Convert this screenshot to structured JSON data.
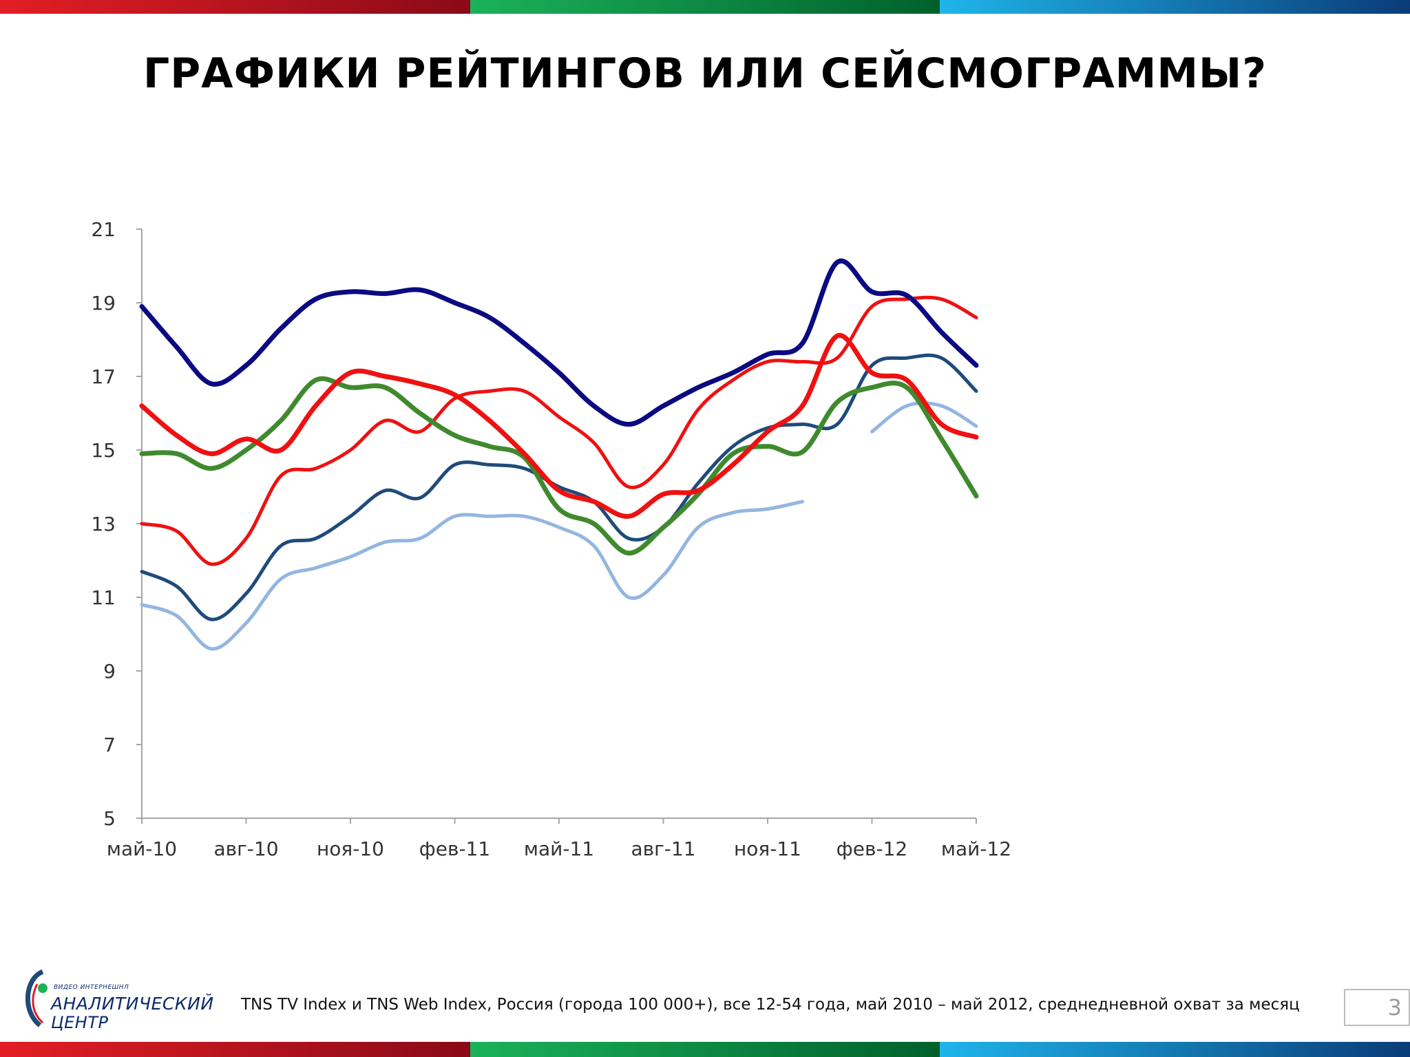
{
  "title": "ГРАФИКИ РЕЙТИНГОВ ИЛИ СЕЙСМОГРАММЫ?",
  "footer": {
    "source": "TNS TV Index и TNS Web Index, Россия (города 100 000+), все 12-54 года, май 2010 – май 2012, среднедневной охват за месяц",
    "page_number": "3",
    "logo_small": "ВИДЕО ИНТЕРНЕШНЛ",
    "logo_line1": "АНАЛИТИЧЕСКИЙ",
    "logo_line2": "ЦЕНТР"
  },
  "colors": {
    "navy": "#0a0a82",
    "red": "#ee1111",
    "green": "#3f8a2e",
    "steel": "#1f4b7a",
    "lightblue": "#93b6e0",
    "band_red": "#e31e24",
    "band_green": "#1bb25a",
    "band_blue": "#1fb5ea"
  },
  "chart_data": {
    "type": "line",
    "x_tick_labels": [
      "май-10",
      "авг-10",
      "ноя-10",
      "фев-11",
      "май-11",
      "авг-11",
      "ноя-11",
      "фев-12",
      "май-12"
    ],
    "ylim": [
      5,
      21
    ],
    "y_ticks": [
      "5",
      "7",
      "9",
      "11",
      "13",
      "15",
      "17",
      "19",
      "21"
    ],
    "legend": "none",
    "series": [
      {
        "color": "#0a0a82",
        "width": 7,
        "values": [
          18.9,
          17.8,
          16.8,
          17.3,
          18.3,
          19.1,
          19.3,
          19.25,
          19.35,
          19.0,
          18.6,
          17.9,
          17.1,
          16.2,
          15.7,
          16.2,
          16.7,
          17.1,
          17.6,
          17.9,
          20.1,
          19.3,
          19.2,
          18.2,
          17.3
        ]
      },
      {
        "color": "#ee1111",
        "width": 7,
        "values": [
          16.2,
          15.4,
          14.9,
          15.3,
          15.0,
          16.2,
          17.1,
          17.0,
          16.8,
          16.5,
          15.8,
          14.9,
          13.9,
          13.6,
          13.2,
          13.8,
          13.9,
          14.6,
          15.5,
          16.2,
          18.1,
          17.1,
          16.9,
          15.7,
          15.35
        ]
      },
      {
        "color": "#ee1111",
        "width": 5,
        "values": [
          13.0,
          12.8,
          11.9,
          12.6,
          14.3,
          14.5,
          15.0,
          15.8,
          15.5,
          16.4,
          16.6,
          16.6,
          15.9,
          15.2,
          14.0,
          14.6,
          16.1,
          16.9,
          17.4,
          17.4,
          17.5,
          18.9,
          19.1,
          19.1,
          18.6
        ]
      },
      {
        "color": "#3f8a2e",
        "width": 7,
        "values": [
          14.9,
          14.9,
          14.5,
          15.0,
          15.8,
          16.9,
          16.7,
          16.7,
          16.0,
          15.4,
          15.1,
          14.8,
          13.4,
          13.0,
          12.2,
          12.9,
          13.8,
          14.9,
          15.1,
          14.95,
          16.3,
          16.7,
          16.7,
          15.3,
          13.75
        ]
      },
      {
        "color": "#1f4b7a",
        "width": 5,
        "values": [
          11.7,
          11.3,
          10.4,
          11.1,
          12.4,
          12.6,
          13.2,
          13.9,
          13.7,
          14.6,
          14.6,
          14.5,
          14.0,
          13.6,
          12.6,
          12.9,
          14.1,
          15.1,
          15.6,
          15.7,
          15.7,
          17.3,
          17.5,
          17.5,
          16.6
        ]
      },
      {
        "color": "#93b6e0",
        "width": 5,
        "values": [
          10.8,
          10.5,
          9.6,
          10.3,
          11.5,
          11.8,
          12.1,
          12.5,
          12.6,
          13.2,
          13.2,
          13.2,
          12.9,
          12.4,
          11.0,
          11.6,
          12.9,
          13.3,
          13.4,
          13.6,
          null,
          15.5,
          16.2,
          16.2,
          15.65
        ]
      }
    ]
  }
}
